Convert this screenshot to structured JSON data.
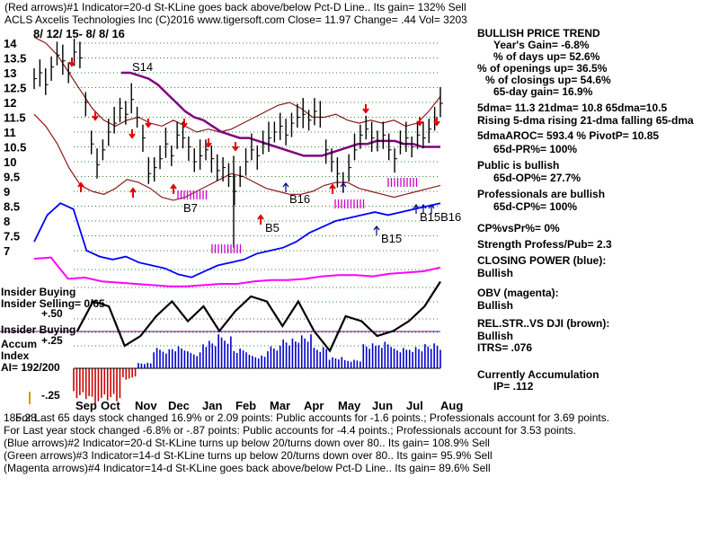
{
  "header": {
    "line1": "(Red arrows)#1 Indicator=20-d St-KLine goes back above/below Pct-D Line.. Its gain= 132% Sell",
    "line2": "ACLS   Axcelis Technologies Inc  (C)2016 www.tigersoft.com    Close=  11.97  Change= .44 Vol= 3203",
    "date_range": "8/ 12/ 15-  8/ 8/ 16"
  },
  "panel": {
    "title": "BULLISH PRICE TREND",
    "years_gain": "Year's Gain= -6.8%",
    "days_up": "% of days up= 52.6%",
    "openings_up": "% of openings up= 36.5%",
    "closings_up": "% of closings up= 54.6%",
    "gain_65": "65-day gain= 16.9%",
    "dma": "5dma= 11.3 21dma= 10.8 65dma=10.5",
    "rising": "Rising 5-dma rising 21-dma falling 65-dma",
    "aroc": "5dmaAROC=  593.4 %  PivotP= 10.85",
    "pr": "65d-PR%= 100%",
    "public": "Public is bullish",
    "op": "65d-OP%=  27.7%",
    "professionals": "Professionals are bullish",
    "cp": "65d-CP%= 100%",
    "cpvspr": "CP%vsPr%=  0%",
    "strength": "Strength Profess/Pub= 2.3",
    "closing_power": "CLOSING POWER (blue):",
    "closing_power_val": "Bullish",
    "obv": "OBV (magenta):",
    "obv_val": "Bullish",
    "relstr": "REL.STR..VS DJI (brown):",
    "relstr_val": "Bullish",
    "itrs": "ITRS=  .076",
    "accum": "Currently Accumulation",
    "ip": "IP=   .112"
  },
  "labels": {
    "insider_buying_1": "Insider Buying",
    "insider_selling": "Insider Selling= 0/65",
    "plus_50": "+.50",
    "insider_buying_2": "Insider Buying",
    "plus_25": "+.25",
    "accum": "Accum",
    "index": "Index",
    "ai": "AI= 192/200",
    "minus_25": "-.25",
    "s14": "S14",
    "b7": "B7",
    "b5": "B5",
    "b16": "B16",
    "b15": "B15",
    "b15b16": "B15B16"
  },
  "footer": {
    "overlap": "185.28",
    "line1": "For Last 65 days stock changed  16.9% or  2.09 points:  Public accounts for -1.6 points.;  Professionals account for  3.69 points.",
    "line2": "For Last year stock changed -6.8% or -.87 points:  Public accounts for -4.4 points.;  Professionals account for  3.53 points.",
    "line3": "(Blue arrows)#2 Indicator=20-d St-KLine turns up below 20/turns down over 80.. Its gain= 108.9% Sell",
    "line4": "(Green arrows)#3 Indicator=14-d St-KLine turns up below 20/turns down over 80.. Its gain= 95.9% Sell",
    "line5": "(Magenta arrows)#4 Indicator=14-d St-KLine goes back above/below Pct-D Line.. Its gain= 89.6% Sell"
  },
  "chart_data": {
    "type": "line",
    "y_ticks": [
      "14",
      "13.5",
      "13",
      "12.5",
      "12",
      "11.5",
      "11",
      "10.5",
      "10",
      "9.5",
      "9",
      "8.5",
      "8",
      "7.5",
      "7"
    ],
    "ylim": [
      7,
      14
    ],
    "x_ticks": [
      "Sep",
      "Oct",
      "Nov",
      "Dec",
      "Jan",
      "Feb",
      "Mar",
      "Apr",
      "May",
      "Jun",
      "Jul",
      "Aug"
    ],
    "grid": true,
    "price_close": [
      12.8,
      13.0,
      12.6,
      13.2,
      13.6,
      13.4,
      13.0,
      13.7,
      13.5,
      12.0,
      10.6,
      9.9,
      10.4,
      11.0,
      11.3,
      11.8,
      11.6,
      12.1,
      11.5,
      10.8,
      9.6,
      9.8,
      10.1,
      10.6,
      10.2,
      10.9,
      10.8,
      10.5,
      10.0,
      10.2,
      10.4,
      10.1,
      9.7,
      9.8,
      9.5,
      9.0,
      9.5,
      10.0,
      10.4,
      10.2,
      10.6,
      10.8,
      11.0,
      11.2,
      10.9,
      11.3,
      11.5,
      11.6,
      11.4,
      11.7,
      11.5,
      10.4,
      10.0,
      9.6,
      9.3,
      9.8,
      10.4,
      10.9,
      11.1,
      10.8,
      10.7,
      10.9,
      10.4,
      10.1,
      10.6,
      10.8,
      10.5,
      10.9,
      10.8,
      11.1,
      11.4,
      11.97
    ],
    "ma_65": [
      13.0,
      13.0,
      12.9,
      12.8,
      12.6,
      12.3,
      12.0,
      11.7,
      11.5,
      11.4,
      11.2,
      11.0,
      10.9,
      10.8,
      10.8,
      10.7,
      10.6,
      10.5,
      10.4,
      10.3,
      10.2,
      10.2,
      10.2,
      10.3,
      10.4,
      10.5,
      10.6,
      10.6,
      10.7,
      10.7,
      10.7,
      10.6,
      10.6,
      10.5,
      10.5,
      10.5
    ],
    "upper_band": [
      14.2,
      14.0,
      13.6,
      13.0,
      12.4,
      11.8,
      11.4,
      11.2,
      11.4,
      11.5,
      11.3,
      11.2,
      11.4,
      11.2,
      11.0,
      11.1,
      11.0,
      11.1,
      11.3,
      11.5,
      11.7,
      11.9,
      12.0,
      11.8,
      11.5,
      11.5,
      11.6,
      11.4,
      11.3,
      11.4,
      11.3,
      11.4,
      11.2,
      11.3,
      11.7,
      12.2
    ],
    "lower_band": [
      11.6,
      11.2,
      10.6,
      9.8,
      9.2,
      9.0,
      8.9,
      9.1,
      9.4,
      9.3,
      9.1,
      8.8,
      8.7,
      8.8,
      9.0,
      9.2,
      9.4,
      9.6,
      9.5,
      9.3,
      9.1,
      9.0,
      8.9,
      8.9,
      9.0,
      9.2,
      9.3,
      9.3,
      9.1,
      9.0,
      8.9,
      8.8,
      8.9,
      9.0,
      9.1,
      9.2
    ],
    "closing_power": [
      7.3,
      8.2,
      8.6,
      8.4,
      7.0,
      6.8,
      6.7,
      6.8,
      6.6,
      6.5,
      6.4,
      6.2,
      6.1,
      6.3,
      6.5,
      6.6,
      6.7,
      6.9,
      7.0,
      7.1,
      7.3,
      7.6,
      7.8,
      8.0,
      8.1,
      8.2,
      8.3,
      8.2,
      8.3,
      8.4,
      8.5,
      8.6
    ],
    "obv": [
      3.0,
      3.1,
      1.4,
      1.5,
      1.2,
      1.1,
      1.0,
      0.9,
      0.8,
      0.8,
      0.9,
      1.0,
      1.0,
      1.2,
      1.3,
      1.3,
      1.4,
      1.6,
      1.7,
      1.7,
      1.6,
      1.8,
      1.9,
      2.0,
      2.3
    ],
    "rel_str": [
      0.3,
      0.9,
      0.8,
      0.0,
      0.2,
      0.6,
      0.9,
      0.5,
      0.8,
      0.3,
      0.7,
      1.0,
      0.9,
      0.4,
      0.9,
      0.3,
      -0.1,
      0.6,
      0.5,
      0.2,
      0.3,
      0.5,
      0.8,
      1.3
    ],
    "accum_index": [
      -0.28,
      -0.32,
      -0.3,
      -0.1,
      0.05,
      0.18,
      0.2,
      0.15,
      0.25,
      0.3,
      0.18,
      0.12,
      0.2,
      0.28,
      0.3,
      0.2,
      0.1,
      0.08,
      0.22,
      0.25,
      0.18,
      0.2,
      0.22,
      0.2
    ]
  }
}
